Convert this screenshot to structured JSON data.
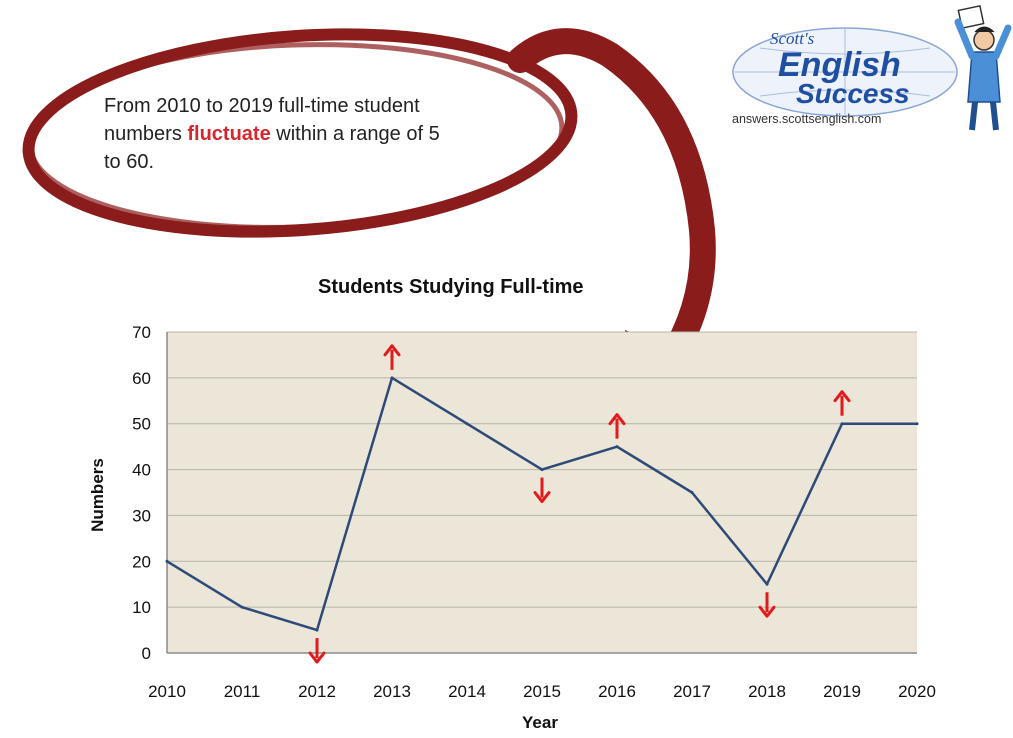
{
  "callout": {
    "line1": "From 2010 to 2019 full-time student",
    "line2_before": "numbers ",
    "line2_highlight": "fluctuate",
    "line2_after": " within a range of 5",
    "line3": "to 60."
  },
  "logo": {
    "script_text": "Scott's",
    "line1": "English",
    "line2": "Success",
    "url": "answers.scottsenglish.com"
  },
  "colors": {
    "callout_arrow": "#8b1c1c",
    "highlight": "#d9262c",
    "plot_background": "#ebe6d8",
    "series_line": "#2d4a78",
    "markers": "#e31a1c",
    "logo_blue": "#1f4fa3"
  },
  "chart_data": {
    "type": "line",
    "title": "Students Studying Full-time",
    "xlabel": "Year",
    "ylabel": "Numbers",
    "x": [
      2010,
      2011,
      2012,
      2013,
      2014,
      2015,
      2016,
      2017,
      2018,
      2019,
      2020
    ],
    "values": [
      20,
      10,
      5,
      60,
      50,
      40,
      45,
      35,
      15,
      50,
      50
    ],
    "ylim": [
      0,
      70
    ],
    "yticks": [
      0,
      10,
      20,
      30,
      40,
      50,
      60,
      70
    ],
    "grid": true,
    "legend": "none",
    "annotations": [
      {
        "x": 2012,
        "direction": "down"
      },
      {
        "x": 2013,
        "direction": "up"
      },
      {
        "x": 2015,
        "direction": "down"
      },
      {
        "x": 2016,
        "direction": "up"
      },
      {
        "x": 2018,
        "direction": "down"
      },
      {
        "x": 2019,
        "direction": "up"
      }
    ]
  }
}
